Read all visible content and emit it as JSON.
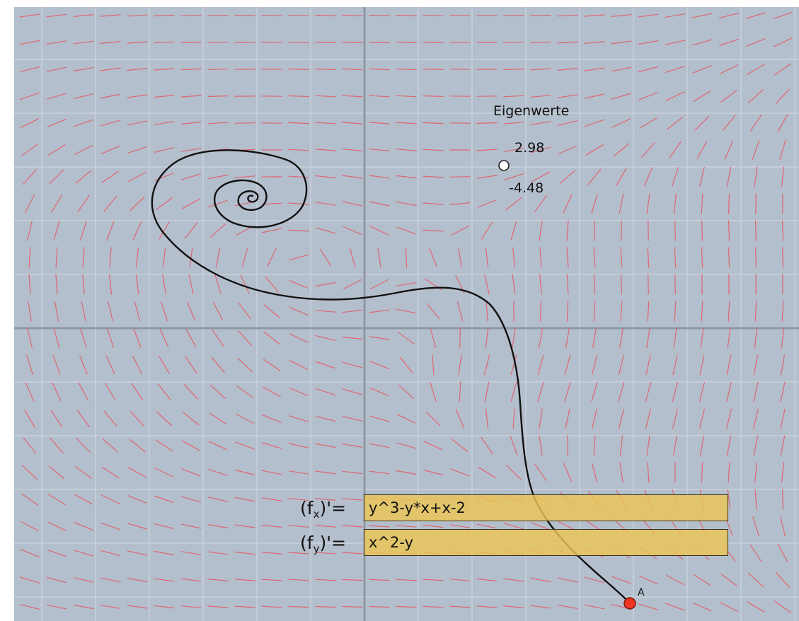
{
  "eigenvalues": {
    "title": "Eigenwerte",
    "value_1": "2.98",
    "value_2": "-4.48"
  },
  "point": {
    "label": "A"
  },
  "equations": {
    "fx": {
      "label_base": "(f",
      "label_sub": "x",
      "label_suffix": ")'=",
      "value": "y^3-y*x+x-2"
    },
    "fy": {
      "label_base": "(f",
      "label_sub": "y",
      "label_suffix": ")'=",
      "value": "x^2-y"
    }
  },
  "colors": {
    "background": "#b4bfcd",
    "grid": "#cdd5df",
    "axis": "#8e98a4",
    "field": "#e8505a",
    "trajectory": "#111111",
    "point_a": "#ee3322",
    "input_fill": "#ecc454"
  }
}
